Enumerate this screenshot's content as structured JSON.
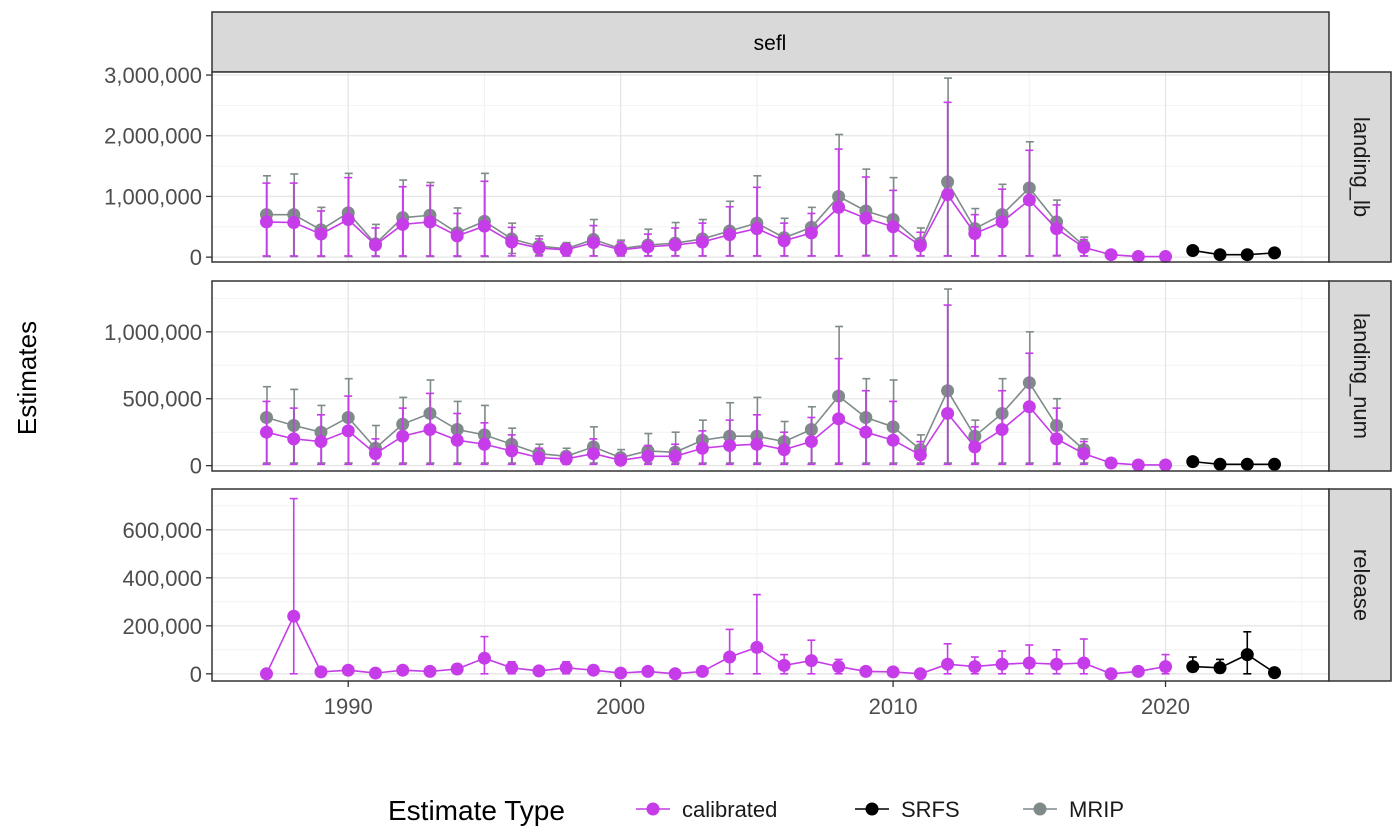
{
  "colors": {
    "calibrated": "#C53CE8",
    "SRFS": "#000000",
    "MRIP": "#7F8A8A",
    "strip_bg": "#D9D9D9",
    "grid_major": "#E6E6E6",
    "grid_minor": "#F2F2F2",
    "panel_border": "#333333",
    "axis_text": "#4D4D4D"
  },
  "chart_data": {
    "type": "line",
    "facet_column": "sefl",
    "ylabel": "Estimates",
    "legend": {
      "title": "Estimate Type",
      "position": "bottom",
      "entries": [
        "calibrated",
        "SRFS",
        "MRIP"
      ]
    },
    "x": {
      "range": [
        1985,
        2026
      ],
      "ticks": [
        1990,
        2000,
        2010,
        2020
      ],
      "tick_labels": [
        "1990",
        "2000",
        "2010",
        "2020"
      ]
    },
    "panels": [
      {
        "name": "landing_lb",
        "ylim": [
          -80000,
          3050000
        ],
        "y_ticks": [
          0,
          1000000,
          2000000,
          3000000
        ],
        "y_tick_labels": [
          "0",
          "1,000,000",
          "2,000,000",
          "3,000,000"
        ],
        "series": [
          {
            "name": "MRIP",
            "x": [
              1987,
              1988,
              1989,
              1990,
              1991,
              1992,
              1993,
              1994,
              1995,
              1996,
              1997,
              1998,
              1999,
              2000,
              2001,
              2002,
              2003,
              2004,
              2005,
              2006,
              2007,
              2008,
              2009,
              2010,
              2011,
              2012,
              2013,
              2014,
              2015,
              2016,
              2017
            ],
            "y": [
              700000,
              700000,
              450000,
              730000,
              220000,
              650000,
              690000,
              400000,
              590000,
              300000,
              180000,
              140000,
              290000,
              140000,
              200000,
              230000,
              300000,
              430000,
              560000,
              320000,
              490000,
              1000000,
              760000,
              620000,
              230000,
              1240000,
              470000,
              700000,
              1140000,
              580000,
              190000
            ],
            "lo": [
              10000,
              10000,
              10000,
              10000,
              10000,
              10000,
              10000,
              10000,
              10000,
              60000,
              40000,
              20000,
              20000,
              20000,
              20000,
              20000,
              20000,
              20000,
              20000,
              20000,
              20000,
              20000,
              30000,
              20000,
              20000,
              20000,
              20000,
              20000,
              20000,
              30000,
              20000
            ],
            "hi": [
              1340000,
              1370000,
              820000,
              1380000,
              540000,
              1270000,
              1230000,
              810000,
              1380000,
              560000,
              350000,
              240000,
              620000,
              280000,
              460000,
              570000,
              620000,
              920000,
              1340000,
              640000,
              820000,
              2020000,
              1450000,
              1310000,
              480000,
              2950000,
              800000,
              1200000,
              1900000,
              940000,
              330000
            ]
          },
          {
            "name": "calibrated",
            "x": [
              1987,
              1988,
              1989,
              1990,
              1991,
              1992,
              1993,
              1994,
              1995,
              1996,
              1997,
              1998,
              1999,
              2000,
              2001,
              2002,
              2003,
              2004,
              2005,
              2006,
              2007,
              2008,
              2009,
              2010,
              2011,
              2012,
              2013,
              2014,
              2015,
              2016,
              2017,
              2018,
              2019,
              2020
            ],
            "y": [
              580000,
              570000,
              380000,
              620000,
              200000,
              540000,
              580000,
              350000,
              510000,
              250000,
              150000,
              120000,
              240000,
              120000,
              170000,
              200000,
              250000,
              370000,
              470000,
              270000,
              400000,
              820000,
              640000,
              500000,
              190000,
              1030000,
              390000,
              580000,
              940000,
              470000,
              160000,
              40000,
              10000,
              10000
            ],
            "lo": [
              20000,
              20000,
              20000,
              20000,
              20000,
              20000,
              20000,
              20000,
              20000,
              20000,
              20000,
              20000,
              20000,
              20000,
              20000,
              20000,
              20000,
              20000,
              20000,
              20000,
              20000,
              20000,
              20000,
              20000,
              20000,
              20000,
              20000,
              20000,
              20000,
              20000,
              20000,
              20000,
              5000,
              5000
            ],
            "hi": [
              1220000,
              1220000,
              760000,
              1310000,
              480000,
              1160000,
              1180000,
              720000,
              1250000,
              490000,
              300000,
              220000,
              520000,
              250000,
              380000,
              480000,
              560000,
              830000,
              1150000,
              560000,
              720000,
              1780000,
              1320000,
              1100000,
              410000,
              2550000,
              700000,
              1120000,
              1760000,
              860000,
              290000,
              70000,
              20000,
              20000
            ]
          },
          {
            "name": "SRFS",
            "x": [
              2021,
              2022,
              2023,
              2024
            ],
            "y": [
              110000,
              40000,
              40000,
              70000
            ],
            "lo": [
              60000,
              10000,
              10000,
              30000
            ],
            "hi": [
              160000,
              60000,
              60000,
              110000
            ]
          }
        ]
      },
      {
        "name": "landing_num",
        "ylim": [
          -40000,
          1380000
        ],
        "y_ticks": [
          0,
          500000,
          1000000
        ],
        "y_tick_labels": [
          "0",
          "500,000",
          "1,000,000"
        ],
        "series": [
          {
            "name": "MRIP",
            "x": [
              1987,
              1988,
              1989,
              1990,
              1991,
              1992,
              1993,
              1994,
              1995,
              1996,
              1997,
              1998,
              1999,
              2000,
              2001,
              2002,
              2003,
              2004,
              2005,
              2006,
              2007,
              2008,
              2009,
              2010,
              2011,
              2012,
              2013,
              2014,
              2015,
              2016,
              2017
            ],
            "y": [
              360000,
              300000,
              250000,
              360000,
              130000,
              310000,
              390000,
              270000,
              230000,
              160000,
              90000,
              70000,
              140000,
              60000,
              110000,
              100000,
              190000,
              220000,
              220000,
              180000,
              270000,
              520000,
              360000,
              290000,
              120000,
              560000,
              220000,
              390000,
              620000,
              300000,
              120000
            ],
            "lo": [
              20000,
              20000,
              20000,
              20000,
              20000,
              20000,
              20000,
              20000,
              20000,
              20000,
              20000,
              20000,
              20000,
              20000,
              20000,
              20000,
              20000,
              20000,
              20000,
              20000,
              20000,
              20000,
              20000,
              20000,
              20000,
              20000,
              20000,
              20000,
              20000,
              20000,
              20000
            ],
            "hi": [
              590000,
              570000,
              450000,
              650000,
              300000,
              510000,
              640000,
              480000,
              450000,
              280000,
              160000,
              130000,
              290000,
              120000,
              240000,
              250000,
              340000,
              470000,
              510000,
              330000,
              440000,
              1040000,
              650000,
              640000,
              230000,
              1320000,
              340000,
              650000,
              1000000,
              500000,
              200000
            ]
          },
          {
            "name": "calibrated",
            "x": [
              1987,
              1988,
              1989,
              1990,
              1991,
              1992,
              1993,
              1994,
              1995,
              1996,
              1997,
              1998,
              1999,
              2000,
              2001,
              2002,
              2003,
              2004,
              2005,
              2006,
              2007,
              2008,
              2009,
              2010,
              2011,
              2012,
              2013,
              2014,
              2015,
              2016,
              2017,
              2018,
              2019,
              2020
            ],
            "y": [
              250000,
              200000,
              180000,
              260000,
              90000,
              220000,
              270000,
              190000,
              160000,
              110000,
              60000,
              50000,
              90000,
              40000,
              70000,
              70000,
              130000,
              150000,
              160000,
              120000,
              180000,
              350000,
              250000,
              190000,
              80000,
              390000,
              140000,
              270000,
              440000,
              200000,
              90000,
              20000,
              5000,
              5000
            ],
            "lo": [
              10000,
              10000,
              10000,
              10000,
              10000,
              10000,
              10000,
              10000,
              10000,
              10000,
              10000,
              10000,
              10000,
              10000,
              10000,
              10000,
              10000,
              10000,
              10000,
              10000,
              10000,
              10000,
              10000,
              10000,
              10000,
              10000,
              10000,
              10000,
              10000,
              10000,
              10000,
              5000,
              2000,
              2000
            ],
            "hi": [
              480000,
              430000,
              380000,
              520000,
              200000,
              430000,
              540000,
              390000,
              320000,
              230000,
              130000,
              100000,
              200000,
              80000,
              150000,
              160000,
              260000,
              340000,
              380000,
              250000,
              360000,
              800000,
              560000,
              480000,
              180000,
              1200000,
              290000,
              560000,
              840000,
              430000,
              180000,
              40000,
              10000,
              10000
            ]
          },
          {
            "name": "SRFS",
            "x": [
              2021,
              2022,
              2023,
              2024
            ],
            "y": [
              30000,
              10000,
              10000,
              10000
            ],
            "lo": [
              10000,
              2000,
              2000,
              2000
            ],
            "hi": [
              50000,
              20000,
              20000,
              20000
            ]
          }
        ]
      },
      {
        "name": "release",
        "ylim": [
          -30000,
          770000
        ],
        "y_ticks": [
          0,
          200000,
          400000,
          600000
        ],
        "y_tick_labels": [
          "0",
          "200,000",
          "400,000",
          "600,000"
        ],
        "series": [
          {
            "name": "calibrated",
            "x": [
              1987,
              1988,
              1989,
              1990,
              1991,
              1992,
              1993,
              1994,
              1995,
              1996,
              1997,
              1998,
              1999,
              2000,
              2001,
              2002,
              2003,
              2004,
              2005,
              2006,
              2007,
              2008,
              2009,
              2010,
              2011,
              2012,
              2013,
              2014,
              2015,
              2016,
              2017,
              2018,
              2019,
              2020
            ],
            "y": [
              0,
              240000,
              8000,
              15000,
              3000,
              15000,
              10000,
              20000,
              65000,
              25000,
              12000,
              25000,
              15000,
              3000,
              10000,
              0,
              10000,
              70000,
              110000,
              35000,
              55000,
              30000,
              10000,
              8000,
              0,
              40000,
              30000,
              40000,
              45000,
              40000,
              45000,
              0,
              10000,
              30000
            ],
            "lo": [
              0,
              0,
              0,
              0,
              0,
              0,
              0,
              0,
              0,
              0,
              0,
              0,
              0,
              0,
              0,
              0,
              0,
              0,
              0,
              0,
              0,
              0,
              0,
              0,
              0,
              0,
              0,
              0,
              0,
              0,
              0,
              0,
              0,
              0
            ],
            "hi": [
              0,
              730000,
              20000,
              30000,
              10000,
              30000,
              20000,
              40000,
              155000,
              50000,
              25000,
              50000,
              35000,
              10000,
              20000,
              0,
              20000,
              185000,
              330000,
              80000,
              140000,
              60000,
              20000,
              20000,
              0,
              125000,
              70000,
              95000,
              120000,
              100000,
              145000,
              0,
              20000,
              80000
            ]
          },
          {
            "name": "SRFS",
            "x": [
              2021,
              2022,
              2023,
              2024
            ],
            "y": [
              30000,
              25000,
              80000,
              5000
            ],
            "lo": [
              10000,
              5000,
              0,
              0
            ],
            "hi": [
              70000,
              60000,
              175000,
              15000
            ]
          }
        ]
      }
    ]
  }
}
